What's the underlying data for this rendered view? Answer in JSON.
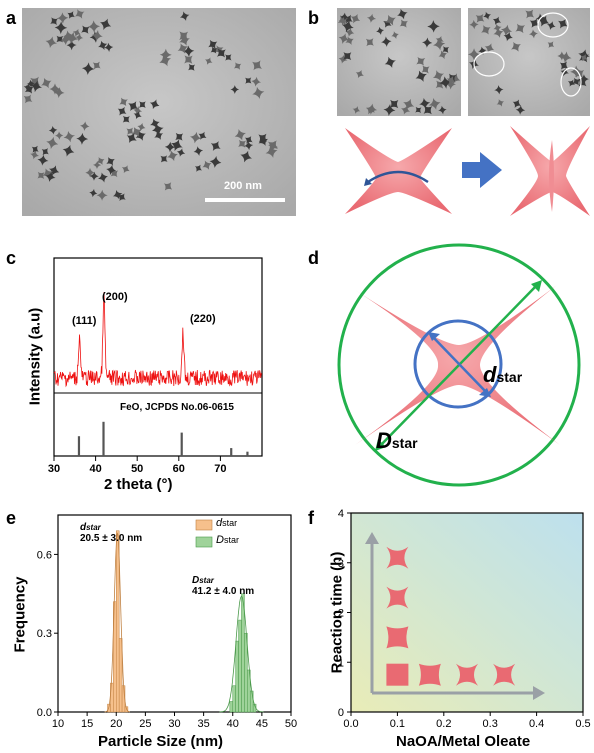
{
  "panel_labels": {
    "a": "a",
    "b": "b",
    "c": "c",
    "d": "d",
    "e": "e",
    "f": "f"
  },
  "panel_a": {
    "scale_bar_label": "200 nm"
  },
  "panel_c": {
    "peaks": [
      "(111)",
      "(200)",
      "(220)"
    ],
    "reference_label": "FeO, JCPDS No.06-0615"
  },
  "panel_d": {
    "small_label": "d",
    "small_sub": "star",
    "big_label": "D",
    "big_sub": "star"
  },
  "panel_e": {
    "annot_small_name": "d",
    "annot_small_sub": "star",
    "annot_small_value": "20.5 ± 3.0 nm",
    "annot_big_name": "D",
    "annot_big_sub": "star",
    "annot_big_value": "41.2 ± 4.0 nm"
  },
  "colors": {
    "xrd_line": "#ee1111",
    "star_fill": "#ef7a80",
    "arrow_blue": "#4472c4",
    "circle_green": "#22b14c",
    "hist_orange": "#f6c08c",
    "hist_green": "#9fd39a"
  },
  "chart_data": [
    {
      "type": "line",
      "panel": "c",
      "xlabel": "2 theta (°)",
      "ylabel": "Intensity (a.u)",
      "xlim": [
        30,
        80
      ],
      "x_ticks": [
        30,
        40,
        50,
        60,
        70
      ],
      "peaks": [
        {
          "x": 36.1,
          "label": "(111)"
        },
        {
          "x": 42.0,
          "label": "(200)"
        },
        {
          "x": 61.0,
          "label": "(220)"
        }
      ],
      "reference_lines": [
        {
          "x": 36.0,
          "height": 0.55
        },
        {
          "x": 41.9,
          "height": 0.95
        },
        {
          "x": 60.7,
          "height": 0.65
        },
        {
          "x": 72.6,
          "height": 0.22
        },
        {
          "x": 76.5,
          "height": 0.12
        }
      ],
      "reference_label": "FeO, JCPDS No.06-0615"
    },
    {
      "type": "bar",
      "panel": "e",
      "xlabel": "Particle Size (nm)",
      "ylabel": "Frequency",
      "xlim": [
        10,
        50
      ],
      "ylim": [
        0,
        0.75
      ],
      "x_ticks": [
        10,
        15,
        20,
        25,
        30,
        35,
        40,
        45,
        50
      ],
      "y_ticks": [
        0.0,
        0.3,
        0.6
      ],
      "series": [
        {
          "name": "dstar",
          "legend_main": "d",
          "legend_sub": "star",
          "color": "#f6c08c",
          "bin_width": 0.5,
          "bins": [
            18.5,
            19.0,
            19.5,
            20.0,
            20.5,
            21.0,
            21.5
          ],
          "values": [
            0.03,
            0.11,
            0.42,
            0.69,
            0.28,
            0.1,
            0.02
          ]
        },
        {
          "name": "Dstar",
          "legend_main": "D",
          "legend_sub": "star",
          "color": "#9fd39a",
          "bin_width": 0.5,
          "bins": [
            39.5,
            40.0,
            40.5,
            41.0,
            41.5,
            42.0,
            42.5,
            43.0,
            43.5
          ],
          "values": [
            0.04,
            0.1,
            0.27,
            0.35,
            0.45,
            0.3,
            0.16,
            0.08,
            0.03
          ]
        }
      ]
    },
    {
      "type": "scatter",
      "panel": "f",
      "xlabel": "NaOA/Metal Oleate",
      "ylabel": "Reaction time (h)",
      "xlim": [
        0.0,
        0.5
      ],
      "ylim": [
        0,
        4
      ],
      "x_ticks": [
        0.0,
        0.1,
        0.2,
        0.3,
        0.4,
        0.5
      ],
      "y_ticks": [
        0,
        1,
        2,
        3,
        4
      ],
      "points": [
        {
          "x": 0.1,
          "y": 0.75,
          "shape": "square"
        },
        {
          "x": 0.1,
          "y": 1.5,
          "shape": "rounded"
        },
        {
          "x": 0.1,
          "y": 2.3,
          "shape": "star"
        },
        {
          "x": 0.1,
          "y": 3.1,
          "shape": "star"
        },
        {
          "x": 0.17,
          "y": 0.75,
          "shape": "rounded"
        },
        {
          "x": 0.25,
          "y": 0.75,
          "shape": "star"
        },
        {
          "x": 0.33,
          "y": 0.75,
          "shape": "star"
        }
      ]
    }
  ]
}
